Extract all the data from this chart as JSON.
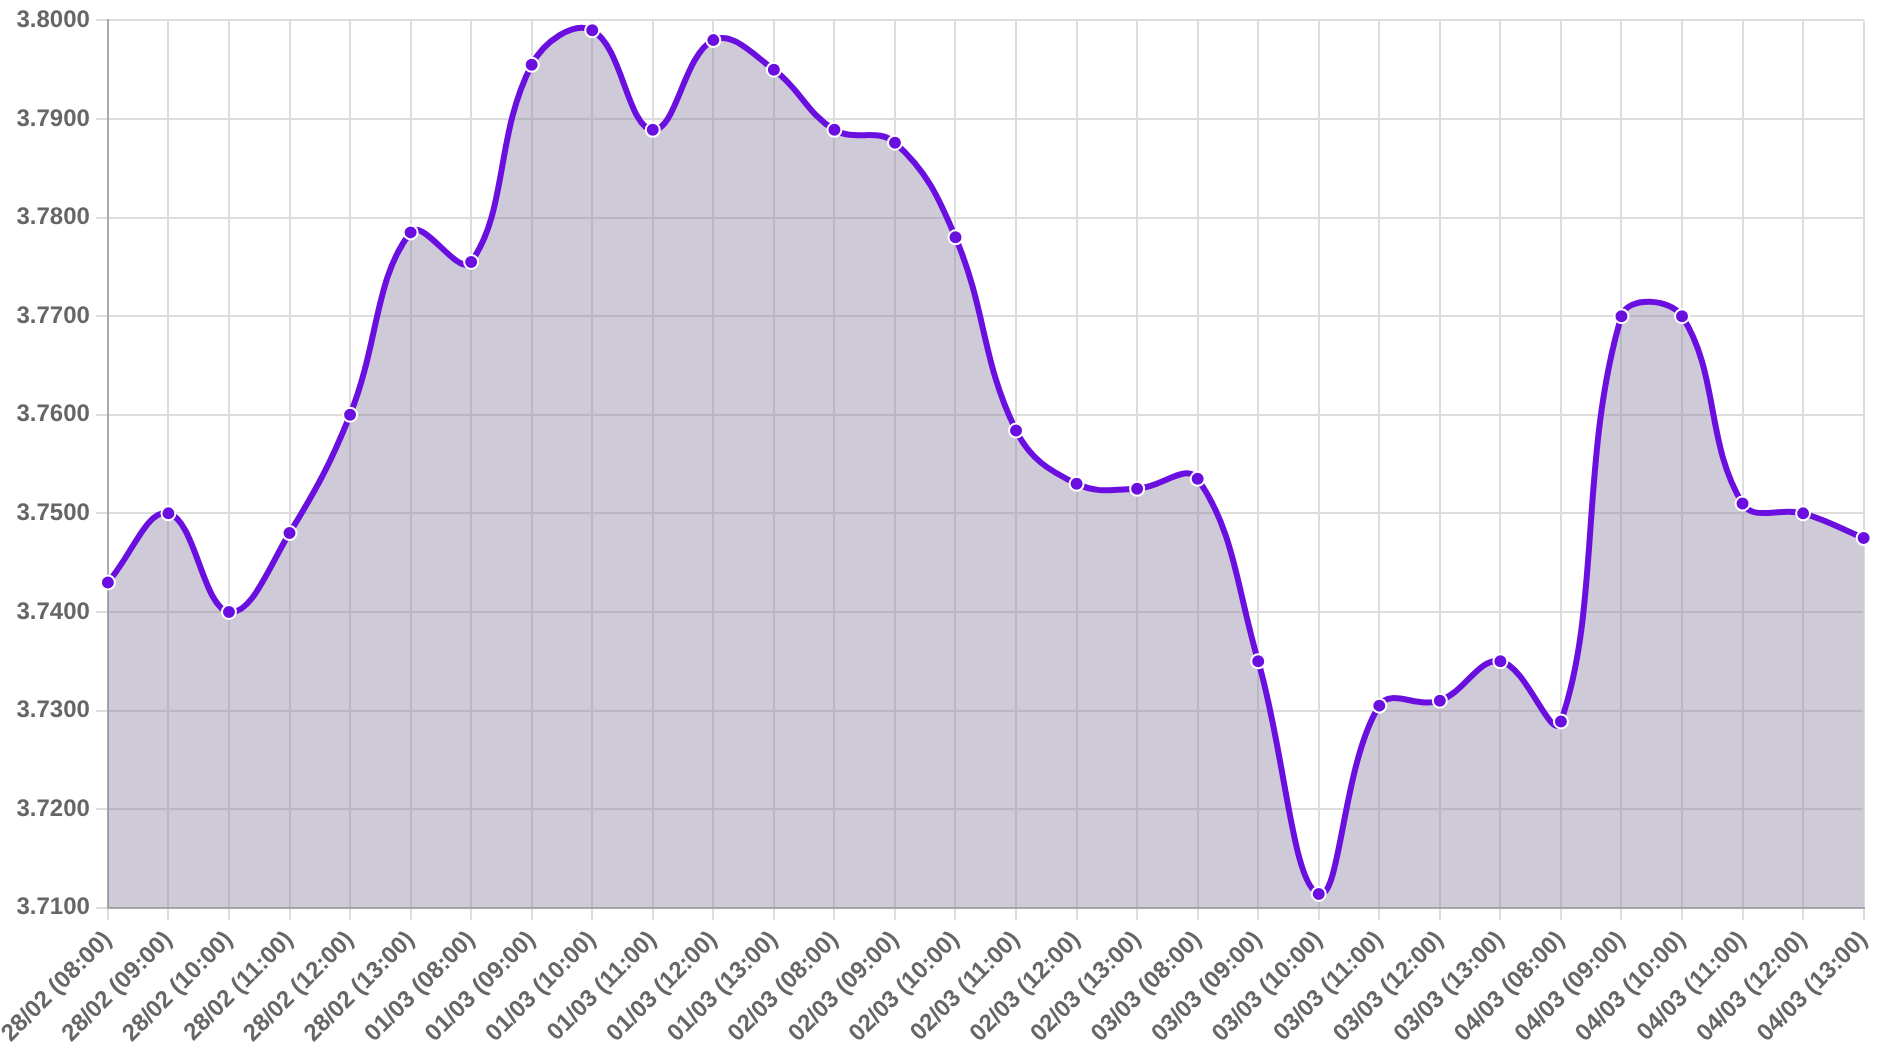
{
  "chart_data": {
    "type": "area",
    "categories": [
      "28/02 (08:00)",
      "28/02 (09:00)",
      "28/02 (10:00)",
      "28/02 (11:00)",
      "28/02 (12:00)",
      "28/02 (13:00)",
      "01/03 (08:00)",
      "01/03 (09:00)",
      "01/03 (10:00)",
      "01/03 (11:00)",
      "01/03 (12:00)",
      "01/03 (13:00)",
      "02/03 (08:00)",
      "02/03 (09:00)",
      "02/03 (10:00)",
      "02/03 (11:00)",
      "02/03 (12:00)",
      "02/03 (13:00)",
      "03/03 (08:00)",
      "03/03 (09:00)",
      "03/03 (10:00)",
      "03/03 (11:00)",
      "03/03 (12:00)",
      "03/03 (13:00)",
      "04/03 (08:00)",
      "04/03 (09:00)",
      "04/03 (10:00)",
      "04/03 (11:00)",
      "04/03 (12:00)",
      "04/03 (13:00)"
    ],
    "series": [
      {
        "color": "#6a0fdf",
        "values": [
          3.743,
          3.75,
          3.74,
          3.748,
          3.76,
          3.7785,
          3.7755,
          3.7955,
          3.799,
          3.7889,
          3.798,
          3.795,
          3.7889,
          3.7876,
          3.778,
          3.7584,
          3.753,
          3.7525,
          3.7535,
          3.735,
          3.7114,
          3.7305,
          3.731,
          3.735,
          3.7289,
          3.77,
          3.77,
          3.751,
          3.75,
          3.7475
        ]
      }
    ],
    "ylim": [
      3.71,
      3.8
    ],
    "yticks": [
      {
        "value": 3.71,
        "label": "3.7100"
      },
      {
        "value": 3.72,
        "label": "3.7200"
      },
      {
        "value": 3.73,
        "label": "3.7300"
      },
      {
        "value": 3.74,
        "label": "3.7400"
      },
      {
        "value": 3.75,
        "label": "3.7500"
      },
      {
        "value": 3.76,
        "label": "3.7600"
      },
      {
        "value": 3.77,
        "label": "3.7700"
      },
      {
        "value": 3.78,
        "label": "3.7800"
      },
      {
        "value": 3.79,
        "label": "3.7900"
      },
      {
        "value": 3.8,
        "label": "3.8000"
      }
    ],
    "grid": true,
    "legend": false,
    "marker": "circle"
  }
}
